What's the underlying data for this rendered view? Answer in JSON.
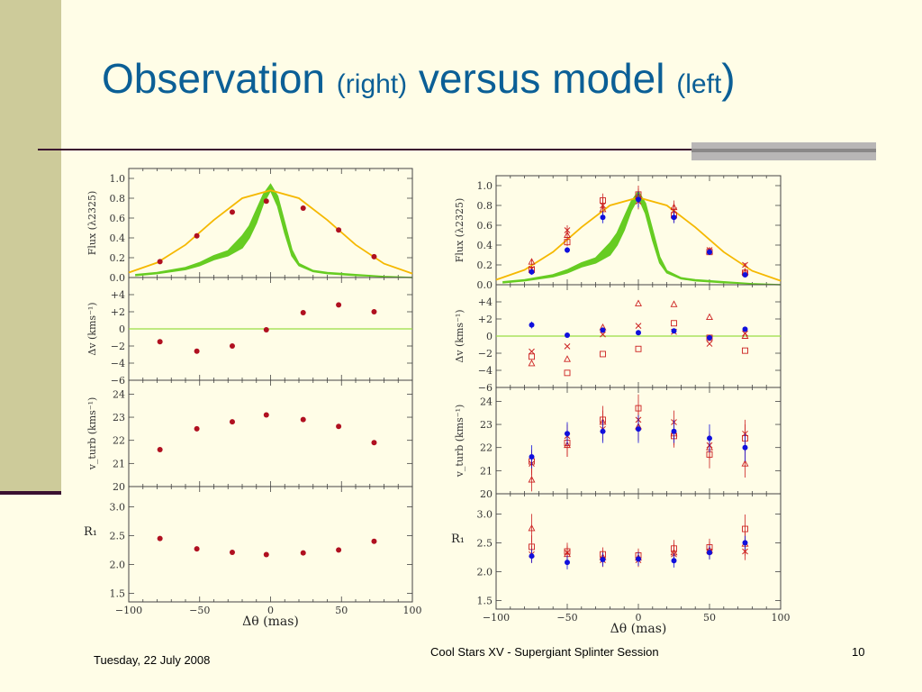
{
  "slide": {
    "title_part1": "Observation",
    "title_part2": "(right)",
    "title_part3": "versus model",
    "title_part4": "(left",
    "title_part5": ")",
    "footer_date": "Tuesday, 22 July 2008",
    "footer_center": "Cool Stars XV - Supergiant Splinter Session",
    "page_number": "10"
  },
  "colors": {
    "text_blue": "#0b5f96",
    "model_orange": "#f5b800",
    "model_green": "#66cc22",
    "point_red": "#b01020",
    "obs_blue": "#1010dd",
    "obs_red": "#cc2020"
  },
  "chart_data": [
    {
      "type": "scatter",
      "panel": "left-flux",
      "ylabel": "Flux (λ2325)",
      "ylim": [
        0.0,
        1.1
      ],
      "yticks": [
        "1.0",
        "0.8",
        "0.6",
        "0.4",
        "0.2",
        "0.0"
      ],
      "ytick_values": [
        1.0,
        0.8,
        0.6,
        0.4,
        0.2,
        0.0
      ],
      "xlim": [
        -100,
        100
      ],
      "x": [
        -78,
        -52,
        -27,
        -3,
        23,
        48,
        73
      ],
      "values": [
        0.16,
        0.42,
        0.66,
        0.77,
        0.7,
        0.48,
        0.21
      ],
      "model_orange_x": [
        -100,
        -80,
        -60,
        -40,
        -20,
        0,
        20,
        40,
        60,
        80,
        100
      ],
      "model_orange_y": [
        0.05,
        0.15,
        0.33,
        0.58,
        0.8,
        0.88,
        0.8,
        0.58,
        0.33,
        0.14,
        0.04
      ],
      "model_green_x": [
        -95,
        -80,
        -60,
        -50,
        -40,
        -30,
        -20,
        -15,
        -10,
        -5,
        0,
        5,
        10,
        15,
        20,
        30,
        40,
        60,
        80,
        100
      ],
      "model_green_lo": [
        0.02,
        0.04,
        0.08,
        0.12,
        0.18,
        0.22,
        0.3,
        0.4,
        0.55,
        0.75,
        0.88,
        0.72,
        0.45,
        0.22,
        0.12,
        0.06,
        0.04,
        0.02,
        0.01,
        0.0
      ],
      "model_green_hi": [
        0.03,
        0.05,
        0.1,
        0.15,
        0.22,
        0.27,
        0.42,
        0.52,
        0.68,
        0.84,
        0.94,
        0.82,
        0.55,
        0.28,
        0.14,
        0.07,
        0.05,
        0.03,
        0.01,
        0.0
      ]
    },
    {
      "type": "scatter",
      "panel": "left-velocity",
      "ylabel": "Δv (kms⁻¹)",
      "ylim": [
        -6,
        6
      ],
      "yticks": [
        "+4",
        "+2",
        "0",
        "−2",
        "−4",
        "−6"
      ],
      "ytick_values": [
        4,
        2,
        0,
        -2,
        -4,
        -6
      ],
      "xlim": [
        -100,
        100
      ],
      "x": [
        -78,
        -52,
        -27,
        -3,
        23,
        48,
        73
      ],
      "values": [
        -1.5,
        -2.6,
        -2.0,
        -0.1,
        1.9,
        2.8,
        2.0
      ]
    },
    {
      "type": "scatter",
      "panel": "left-vturb",
      "ylabel": "v_turb (kms⁻¹)",
      "ylim": [
        20,
        24.6
      ],
      "yticks": [
        "24",
        "23",
        "22",
        "21",
        "20"
      ],
      "ytick_values": [
        24,
        23,
        22,
        21,
        20
      ],
      "xlim": [
        -100,
        100
      ],
      "x": [
        -78,
        -52,
        -27,
        -3,
        23,
        48,
        73
      ],
      "values": [
        21.6,
        22.5,
        22.8,
        23.1,
        22.9,
        22.6,
        21.9
      ]
    },
    {
      "type": "scatter",
      "panel": "left-r1",
      "ylabel": "R₁",
      "ylim": [
        1.35,
        3.35
      ],
      "yticks": [
        "3.0",
        "2.5",
        "2.0",
        "1.5"
      ],
      "ytick_values": [
        3.0,
        2.5,
        2.0,
        1.5
      ],
      "xlim": [
        -100,
        100
      ],
      "xticks": [
        "−100",
        "−50",
        "0",
        "50",
        "100"
      ],
      "xtick_values": [
        -100,
        -50,
        0,
        50,
        100
      ],
      "xlabel": "Δθ (mas)",
      "x": [
        -78,
        -52,
        -27,
        -3,
        23,
        48,
        73
      ],
      "values": [
        2.45,
        2.27,
        2.21,
        2.17,
        2.2,
        2.25,
        2.4
      ]
    },
    {
      "type": "scatter",
      "panel": "right-flux",
      "ylabel": "Flux (λ2325)",
      "ylim": [
        0.0,
        1.1
      ],
      "yticks": [
        "1.0",
        "0.8",
        "0.6",
        "0.4",
        "0.2",
        "0.0"
      ],
      "ytick_values": [
        1.0,
        0.8,
        0.6,
        0.4,
        0.2,
        0.0
      ],
      "xlim": [
        -100,
        100
      ],
      "x": [
        -75,
        -50,
        -25,
        0,
        25,
        50,
        75
      ],
      "series": [
        {
          "marker": "dot",
          "values": [
            0.13,
            0.35,
            0.68,
            0.86,
            0.68,
            0.33,
            0.1
          ],
          "err": [
            0.03,
            0.03,
            0.06,
            0.08,
            0.06,
            0.03,
            0.02
          ]
        },
        {
          "marker": "square",
          "values": [
            0.15,
            0.43,
            0.85,
            0.91,
            0.7,
            0.33,
            0.12
          ],
          "err": [
            0.03,
            0.04,
            0.07,
            0.09,
            0.07,
            0.03,
            0.02
          ]
        },
        {
          "marker": "triangle",
          "values": [
            0.23,
            0.5,
            0.76,
            0.89,
            0.78,
            0.34,
            0.13
          ],
          "err": [
            0.03,
            0.04,
            0.07,
            0.08,
            0.07,
            0.03,
            0.02
          ]
        },
        {
          "marker": "cross",
          "values": [
            0.16,
            0.55,
            0.8,
            0.84,
            0.75,
            0.35,
            0.2
          ],
          "err": [
            0.03,
            0.05,
            0.08,
            0.08,
            0.07,
            0.03,
            0.02
          ]
        }
      ],
      "model_orange_x": [
        -100,
        -80,
        -60,
        -40,
        -20,
        0,
        20,
        40,
        60,
        80,
        100
      ],
      "model_orange_y": [
        0.05,
        0.15,
        0.33,
        0.58,
        0.8,
        0.88,
        0.8,
        0.58,
        0.33,
        0.14,
        0.04
      ],
      "model_green_x": [
        -95,
        -80,
        -60,
        -50,
        -40,
        -30,
        -20,
        -15,
        -10,
        -5,
        0,
        5,
        10,
        15,
        20,
        30,
        40,
        60,
        80,
        100
      ],
      "model_green_lo": [
        0.02,
        0.04,
        0.08,
        0.12,
        0.18,
        0.22,
        0.3,
        0.4,
        0.55,
        0.75,
        0.88,
        0.72,
        0.45,
        0.22,
        0.12,
        0.06,
        0.04,
        0.02,
        0.01,
        0.0
      ],
      "model_green_hi": [
        0.03,
        0.05,
        0.1,
        0.15,
        0.22,
        0.27,
        0.42,
        0.52,
        0.68,
        0.84,
        0.94,
        0.82,
        0.55,
        0.28,
        0.14,
        0.07,
        0.05,
        0.03,
        0.01,
        0.0
      ]
    },
    {
      "type": "scatter",
      "panel": "right-velocity",
      "ylabel": "Δv (kms⁻¹)",
      "ylim": [
        -6,
        6
      ],
      "yticks": [
        "+4",
        "+2",
        "0",
        "−2",
        "−4",
        "−6"
      ],
      "ytick_values": [
        4,
        2,
        0,
        -2,
        -4,
        -6
      ],
      "xlim": [
        -100,
        100
      ],
      "x": [
        -75,
        -50,
        -25,
        0,
        25,
        50,
        75
      ],
      "series": [
        {
          "marker": "dot",
          "values": [
            1.3,
            0.1,
            0.7,
            0.4,
            0.6,
            -0.2,
            0.8
          ],
          "err": [
            0.4,
            0.3,
            0.3,
            0.3,
            0.3,
            0.3,
            0.3
          ]
        },
        {
          "marker": "square",
          "values": [
            -2.4,
            -4.3,
            -2.1,
            -1.5,
            1.5,
            -0.2,
            -1.7
          ],
          "err": [
            0,
            0,
            0,
            0,
            0,
            0,
            0
          ]
        },
        {
          "marker": "triangle",
          "values": [
            -3.2,
            -2.7,
            1.0,
            3.8,
            3.7,
            2.2,
            0.0
          ],
          "err": [
            0,
            0,
            0,
            0,
            0,
            0,
            0
          ]
        },
        {
          "marker": "cross",
          "values": [
            -1.8,
            -1.2,
            0.2,
            1.2,
            0.5,
            -0.9,
            0.3
          ],
          "err": [
            0,
            0,
            0,
            0,
            0,
            0,
            0
          ]
        }
      ]
    },
    {
      "type": "scatter",
      "panel": "right-vturb",
      "ylabel": "v_turb (kms⁻¹)",
      "ylim": [
        20,
        24.6
      ],
      "yticks": [
        "24",
        "23",
        "22",
        "21",
        "20"
      ],
      "ytick_values": [
        24,
        23,
        22,
        21,
        20
      ],
      "xlim": [
        -100,
        100
      ],
      "x": [
        -75,
        -50,
        -25,
        0,
        25,
        50,
        75
      ],
      "series": [
        {
          "marker": "dot",
          "values": [
            21.6,
            22.6,
            22.7,
            22.8,
            22.7,
            22.4,
            22.0
          ],
          "err": [
            0.5,
            0.5,
            0.5,
            0.6,
            0.5,
            0.6,
            0.6
          ]
        },
        {
          "marker": "square",
          "values": [
            21.4,
            22.2,
            23.2,
            23.7,
            22.5,
            21.7,
            22.4
          ],
          "err": [
            0.5,
            0.6,
            0.6,
            0.6,
            0.5,
            0.6,
            0.6
          ]
        },
        {
          "marker": "triangle",
          "values": [
            20.6,
            22.1,
            23.1,
            22.9,
            22.6,
            22.0,
            21.3
          ],
          "err": [
            0.5,
            0.5,
            0.5,
            0.6,
            0.5,
            0.5,
            0.6
          ]
        },
        {
          "marker": "cross",
          "values": [
            21.3,
            22.5,
            22.8,
            23.2,
            23.1,
            22.1,
            22.6
          ],
          "err": [
            0.5,
            0.5,
            0.5,
            0.6,
            0.5,
            0.6,
            0.6
          ]
        }
      ]
    },
    {
      "type": "scatter",
      "panel": "right-r1",
      "ylabel": "R₁",
      "ylim": [
        1.35,
        3.35
      ],
      "yticks": [
        "3.0",
        "2.5",
        "2.0",
        "1.5"
      ],
      "ytick_values": [
        3.0,
        2.5,
        2.0,
        1.5
      ],
      "xlim": [
        -100,
        100
      ],
      "xticks": [
        "−100",
        "−50",
        "0",
        "50",
        "100"
      ],
      "xtick_values": [
        -100,
        -50,
        0,
        50,
        100
      ],
      "xlabel": "Δθ (mas)",
      "x": [
        -75,
        -50,
        -25,
        0,
        25,
        50,
        75
      ],
      "series": [
        {
          "marker": "dot",
          "values": [
            2.27,
            2.16,
            2.21,
            2.22,
            2.19,
            2.33,
            2.5
          ],
          "err": [
            0.12,
            0.12,
            0.12,
            0.12,
            0.12,
            0.12,
            0.12
          ]
        },
        {
          "marker": "square",
          "values": [
            2.43,
            2.35,
            2.3,
            2.28,
            2.4,
            2.42,
            2.74
          ],
          "err": [
            0.2,
            0.15,
            0.12,
            0.12,
            0.15,
            0.15,
            0.25
          ]
        },
        {
          "marker": "triangle",
          "values": [
            2.75,
            2.3,
            2.25,
            2.24,
            2.33,
            2.37,
            2.48
          ],
          "err": [
            0.25,
            0.15,
            0.12,
            0.12,
            0.15,
            0.15,
            0.2
          ]
        },
        {
          "marker": "cross",
          "values": [
            2.3,
            2.33,
            2.2,
            2.2,
            2.3,
            2.35,
            2.35
          ],
          "err": [
            0.15,
            0.12,
            0.12,
            0.12,
            0.12,
            0.12,
            0.15
          ]
        }
      ]
    }
  ]
}
